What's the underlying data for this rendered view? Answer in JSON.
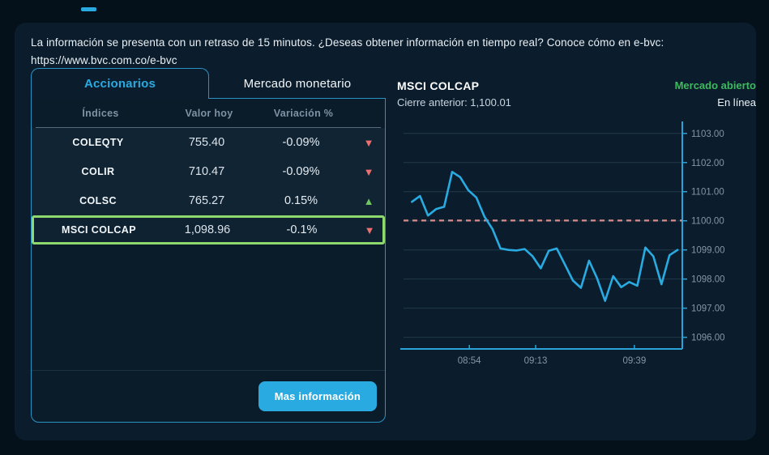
{
  "notice": {
    "line1": "La información se presenta con un retraso de 15 minutos. ¿Deseas obtener información en tiempo real? Conoce cómo en e-bvc:",
    "line2": "https://www.bvc.com.co/e-bvc"
  },
  "tabs": [
    {
      "label": "Accionarios",
      "active": true
    },
    {
      "label": "Mercado monetario",
      "active": false
    }
  ],
  "table": {
    "headers": [
      "Índices",
      "Valor hoy",
      "Variación %"
    ],
    "rows": [
      {
        "name": "COLEQTY",
        "value": "755.40",
        "variation": "-0.09%",
        "direction": "down",
        "selected": false
      },
      {
        "name": "COLIR",
        "value": "710.47",
        "variation": "-0.09%",
        "direction": "down",
        "selected": false
      },
      {
        "name": "COLSC",
        "value": "765.27",
        "variation": "0.15%",
        "direction": "up",
        "selected": false
      },
      {
        "name": "MSCI COLCAP",
        "value": "1,098.96",
        "variation": "-0.1%",
        "direction": "down",
        "selected": true
      }
    ]
  },
  "footer": {
    "button_label": "Mas información"
  },
  "chart_header": {
    "title": "MSCI COLCAP",
    "prev_close_label": "Cierre anterior: 1,100.01",
    "status": "Mercado abierto",
    "status_sub": "En línea"
  },
  "icons": {
    "up": "▲",
    "down": "▼"
  },
  "colors": {
    "accent": "#29abe2",
    "line": "#29abe2",
    "dashed": "#d98c8c",
    "axis": "#2aa3d8",
    "grid": "#223949",
    "tick_label": "#8496a6",
    "green": "#3fb95f",
    "red": "#ee6f6f",
    "selected_border": "#8ed96d"
  },
  "chart_data": {
    "type": "line",
    "series": [
      {
        "name": "MSCI COLCAP",
        "values": [
          1100.65,
          1100.85,
          1100.18,
          1100.4,
          1100.48,
          1101.68,
          1101.5,
          1101.05,
          1100.8,
          1100.15,
          1099.72,
          1099.05,
          1099.0,
          1098.98,
          1099.03,
          1098.78,
          1098.37,
          1098.97,
          1099.05,
          1098.5,
          1097.95,
          1097.7,
          1098.63,
          1098.03,
          1097.25,
          1098.1,
          1097.72,
          1097.9,
          1097.77,
          1099.08,
          1098.78,
          1097.82,
          1098.82,
          1099.0
        ]
      }
    ],
    "prev_close": 1100.01,
    "ylim": [
      1095.6,
      1103.3
    ],
    "y_ticks": [
      1103,
      1102,
      1101,
      1100,
      1099,
      1098,
      1097,
      1096
    ],
    "y_tick_labels": [
      "1103.00",
      "1102.00",
      "1101.00",
      "1100.00",
      "1099.00",
      "1098.00",
      "1097.00",
      "1096.00"
    ],
    "x_ticks": [
      {
        "label": "08:54",
        "pos": 0.236
      },
      {
        "label": "09:13",
        "pos": 0.474
      },
      {
        "label": "09:39",
        "pos": 0.828
      }
    ],
    "x_range": [
      0.03,
      0.983
    ],
    "legend": "none",
    "grid": "horizontal"
  }
}
